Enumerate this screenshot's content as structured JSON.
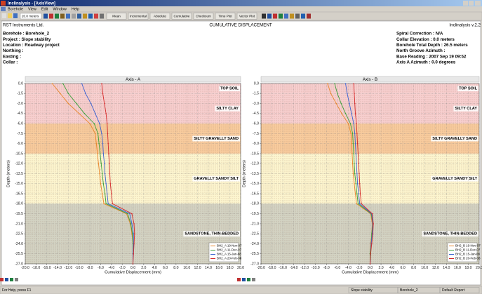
{
  "window": {
    "title": "Inclinalysis - [AxisView]",
    "menu": [
      "Borehole",
      "View",
      "Edit",
      "Window",
      "Help"
    ],
    "depth_select": "20.0 meters",
    "toolbar_buttons": [
      "Mean",
      "Incremental",
      "Absolute",
      "Cumulative",
      "Checksum",
      "Time Plot",
      "Vector Plot"
    ]
  },
  "header": {
    "company": "RST Instruments Ltd.",
    "title": "CUMULATIVE DISPLACEMENT",
    "app_version": "Inclinalysis v.2.2",
    "left": [
      "Borehole : Borehole_2",
      "Project : Slope stability",
      "Location : Roadway project",
      "Northing :",
      "Easting :",
      "Collar :"
    ],
    "right": [
      "Spiral Correction : N/A",
      "Collar Elevation : 0.0 meters",
      "Borehole Total Depth : 26.5 meters",
      "North Groove Azimuth :",
      "Base Reading : 2007 Sep 19 09:52",
      "Axis A Azimuth : 0.0 degrees"
    ]
  },
  "chart_data": [
    {
      "type": "line",
      "title": "Axis - A",
      "xlabel": "Cumulative Displacement (mm)",
      "ylabel": "Depth (meters)",
      "grid": true,
      "legend": "lower right",
      "xlim": [
        -20,
        20
      ],
      "ylim": [
        -27,
        0
      ],
      "xticks": [
        {
          "value": -20,
          "label": "-20.0"
        },
        {
          "value": -18,
          "label": "-18.0"
        },
        {
          "value": -16,
          "label": "-16.0"
        },
        {
          "value": -14,
          "label": "-14.0"
        },
        {
          "value": -12,
          "label": "-12.0"
        },
        {
          "value": -10,
          "label": "-10.0"
        },
        {
          "value": -8,
          "label": "-8.0"
        },
        {
          "value": -6,
          "label": "-6.0"
        },
        {
          "value": -4,
          "label": "-4.0"
        },
        {
          "value": -2,
          "label": "-2.0"
        },
        {
          "value": 0,
          "label": "0.0"
        },
        {
          "value": 2,
          "label": "2.0"
        },
        {
          "value": 4,
          "label": "4.0"
        },
        {
          "value": 6,
          "label": "6.0"
        },
        {
          "value": 8,
          "label": "8.0"
        },
        {
          "value": 10,
          "label": "10.0"
        },
        {
          "value": 12,
          "label": "12.0"
        },
        {
          "value": 14,
          "label": "14.0"
        },
        {
          "value": 16,
          "label": "16.0"
        },
        {
          "value": 18,
          "label": "18.0"
        },
        {
          "value": 20,
          "label": "20.0"
        }
      ],
      "yticks": [
        {
          "value": 0,
          "label": "0.0"
        },
        -1.5,
        {
          "value": -3,
          "label": "-3.0"
        },
        -4.5,
        {
          "value": -6,
          "label": "-6.0"
        },
        -7.5,
        {
          "value": -9,
          "label": "-9.0"
        },
        -10.5,
        {
          "value": -12,
          "label": "-12.0"
        },
        -13.5,
        {
          "value": -15,
          "label": "-15.0"
        },
        -16.5,
        {
          "value": -18,
          "label": "-18.0"
        },
        -19.5,
        {
          "value": -21,
          "label": "-21.0"
        },
        -22.5,
        {
          "value": -24,
          "label": "-24.0"
        },
        -25.5,
        {
          "value": -27,
          "label": "-27.0"
        }
      ],
      "layers": [
        {
          "name": "TOP SOIL",
          "top": 0,
          "bottom": -1.5,
          "color": "#f7cfcf"
        },
        {
          "name": "SILTY CLAY",
          "top": -1.5,
          "bottom": -6,
          "color": "#f7cfcf"
        },
        {
          "name": "SILTY GRAVELLY SAND",
          "top": -6,
          "bottom": -10.5,
          "color": "#f8cc9e"
        },
        {
          "name": "GRAVELLY SANDY SILT",
          "top": -10.5,
          "bottom": -18,
          "color": "#fcf5cf"
        },
        {
          "name": "SANDSTONE, THIN-BEDDED",
          "top": -18,
          "bottom": -27,
          "color": "#d3d3c3"
        }
      ],
      "depths": [
        0,
        -1.5,
        -3,
        -4.5,
        -6,
        -7.5,
        -9,
        -10.5,
        -12,
        -13.5,
        -15,
        -16.5,
        -18,
        -19.5,
        -21,
        -22.5,
        -24,
        -25.5,
        -27
      ],
      "series": [
        {
          "name": "BH2_A 19-Nov-07",
          "color": "#e8862a",
          "values": [
            -15,
            -13.5,
            -12,
            -10,
            -8,
            -7,
            -6.8,
            -6.6,
            -6.4,
            -6.2,
            -6,
            -5.7,
            -5.4,
            -1.2,
            -0.5,
            -0.2,
            0,
            0,
            0
          ]
        },
        {
          "name": "BH2_A 11-Dec-07",
          "color": "#3aa03a",
          "values": [
            -13,
            -12,
            -10.5,
            -9,
            -7.2,
            -6.5,
            -6.3,
            -6.1,
            -5.9,
            -5.7,
            -5.5,
            -5.2,
            -5,
            -1,
            -0.4,
            -0.1,
            0,
            0,
            0
          ]
        },
        {
          "name": "BH2_A 15-Jan-08",
          "color": "#3a62d0",
          "values": [
            -9.5,
            -8.8,
            -7.8,
            -7,
            -6.2,
            -5.8,
            -5.6,
            -5.5,
            -5.3,
            -5.2,
            -5,
            -4.8,
            -4.6,
            -0.6,
            -0.2,
            0.1,
            0.1,
            0,
            0
          ]
        },
        {
          "name": "BH2_A 20-Feb-08",
          "color": "#d42a2a",
          "values": [
            -5.8,
            -5.6,
            -5.3,
            -5,
            -4.8,
            -4.7,
            -4.6,
            -4.5,
            -4.4,
            -4.3,
            -4.2,
            -4,
            -3.8,
            -0.2,
            0.2,
            0.3,
            0.2,
            0.1,
            0
          ]
        }
      ]
    },
    {
      "type": "line",
      "title": "Axis - B",
      "xlabel": "Cumulative Displacement (mm)",
      "ylabel": "Depth (meters)",
      "grid": true,
      "legend": "lower right",
      "xlim": [
        -20,
        20
      ],
      "ylim": [
        -27,
        0
      ],
      "xticks": [
        {
          "value": -20,
          "label": "-20.0"
        },
        {
          "value": -18,
          "label": "-18.0"
        },
        {
          "value": -16,
          "label": "-16.0"
        },
        {
          "value": -14,
          "label": "-14.0"
        },
        {
          "value": -12,
          "label": "-12.0"
        },
        {
          "value": -10,
          "label": "-10.0"
        },
        {
          "value": -8,
          "label": "-8.0"
        },
        {
          "value": -6,
          "label": "-6.0"
        },
        {
          "value": -4,
          "label": "-4.0"
        },
        {
          "value": -2,
          "label": "-2.0"
        },
        {
          "value": 0,
          "label": "0.0"
        },
        {
          "value": 2,
          "label": "2.0"
        },
        {
          "value": 4,
          "label": "4.0"
        },
        {
          "value": 6,
          "label": "6.0"
        },
        {
          "value": 8,
          "label": "8.0"
        },
        {
          "value": 10,
          "label": "10.0"
        },
        {
          "value": 12,
          "label": "12.0"
        },
        {
          "value": 14,
          "label": "14.0"
        },
        {
          "value": 16,
          "label": "16.0"
        },
        {
          "value": 18,
          "label": "18.0"
        },
        {
          "value": 20,
          "label": "20.0"
        }
      ],
      "yticks": [
        {
          "value": 0,
          "label": "0.0"
        },
        -1.5,
        {
          "value": -3,
          "label": "-3.0"
        },
        -4.5,
        {
          "value": -6,
          "label": "-6.0"
        },
        -7.5,
        {
          "value": -9,
          "label": "-9.0"
        },
        -10.5,
        {
          "value": -12,
          "label": "-12.0"
        },
        -13.5,
        {
          "value": -15,
          "label": "-15.0"
        },
        -16.5,
        {
          "value": -18,
          "label": "-18.0"
        },
        -19.5,
        {
          "value": -21,
          "label": "-21.0"
        },
        -22.5,
        {
          "value": -24,
          "label": "-24.0"
        },
        -25.5,
        {
          "value": -27,
          "label": "-27.0"
        }
      ],
      "layers": [
        {
          "name": "TOP SOIL",
          "top": 0,
          "bottom": -1.5,
          "color": "#f7cfcf"
        },
        {
          "name": "SILTY CLAY",
          "top": -1.5,
          "bottom": -6,
          "color": "#f7cfcf"
        },
        {
          "name": "SILTY GRAVELLY SAND",
          "top": -6,
          "bottom": -10.5,
          "color": "#f8cc9e"
        },
        {
          "name": "GRAVELLY SANDY SILT",
          "top": -10.5,
          "bottom": -18,
          "color": "#fcf5cf"
        },
        {
          "name": "SANDSTONE, THIN-BEDDED",
          "top": -18,
          "bottom": -27,
          "color": "#d3d3c3"
        }
      ],
      "depths": [
        0,
        -1.5,
        -3,
        -4.5,
        -6,
        -7.5,
        -9,
        -10.5,
        -12,
        -13.5,
        -15,
        -16.5,
        -18,
        -19.5,
        -21,
        -22.5,
        -24,
        -25.5,
        -27
      ],
      "series": [
        {
          "name": "BH2_B 19-Nov-07",
          "color": "#e8862a",
          "values": [
            -7.8,
            -7.2,
            -6.2,
            -5.2,
            -4,
            -3.5,
            -3.4,
            -3.3,
            -3.2,
            -3.1,
            -2.9,
            -2.7,
            -2.5,
            0.1,
            0.4,
            0.3,
            0.1,
            0,
            0
          ]
        },
        {
          "name": "BH2_B 11-Dec-07",
          "color": "#3aa03a",
          "values": [
            -6.5,
            -6,
            -5.3,
            -4.5,
            -3.6,
            -3.2,
            -3.1,
            -3,
            -2.9,
            -2.8,
            -2.6,
            -2.4,
            -2.2,
            0.2,
            0.5,
            0.3,
            0.2,
            0,
            0
          ]
        },
        {
          "name": "BH2_B 15-Jan-08",
          "color": "#3a62d0",
          "values": [
            -4.5,
            -4.2,
            -3.8,
            -3.4,
            -3,
            -2.8,
            -2.7,
            -2.6,
            -2.5,
            -2.4,
            -2.3,
            -2.1,
            -1.9,
            0.3,
            0.5,
            0.4,
            0.2,
            0.1,
            0
          ]
        },
        {
          "name": "BH2_B 20-Feb-08",
          "color": "#d42a2a",
          "values": [
            -3,
            -2.9,
            -2.8,
            -2.7,
            -2.5,
            -2.4,
            -2.3,
            -2.2,
            -2.1,
            -2,
            -1.9,
            -1.8,
            -1.6,
            0.4,
            0.6,
            0.5,
            0.3,
            0.1,
            0
          ]
        }
      ]
    }
  ],
  "status_bar": [
    "For Help, press F1",
    "Slope stability",
    "Borehole_2",
    "Default Report"
  ]
}
